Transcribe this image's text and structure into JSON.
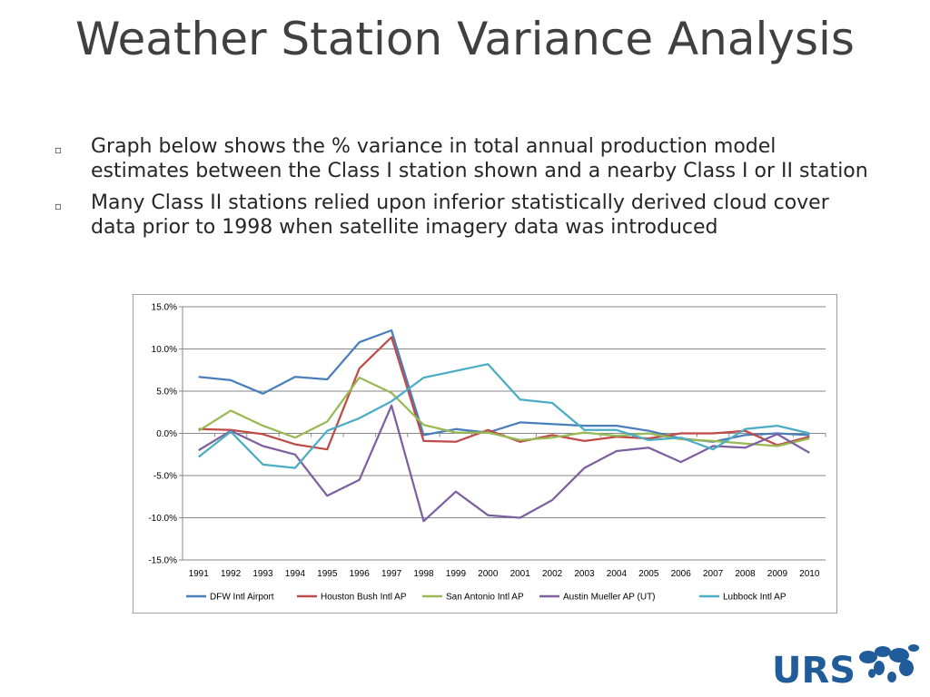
{
  "slide": {
    "title": "Weather Station Variance Analysis",
    "bullets": [
      "Graph below shows the % variance in total annual production model estimates between the Class I station shown and a nearby Class I or II station",
      "Many Class II stations relied upon inferior statistically derived cloud cover data prior to 1998 when satellite imagery data was introduced"
    ],
    "bullet_marker": "▫"
  },
  "logo": {
    "text": "URS",
    "color": "#1f5c99"
  },
  "chart_data": {
    "type": "line",
    "title": "",
    "xlabel": "",
    "ylabel": "",
    "x": [
      "1991",
      "1992",
      "1993",
      "1994",
      "1995",
      "1996",
      "1997",
      "1998",
      "1999",
      "2000",
      "2001",
      "2002",
      "2003",
      "2004",
      "2005",
      "2006",
      "2007",
      "2008",
      "2009",
      "2010"
    ],
    "ylim": [
      -15,
      15
    ],
    "yticks": [
      15,
      10,
      5,
      0,
      -5,
      -10,
      -15
    ],
    "ytick_labels": [
      "15.0%",
      "10.0%",
      "5.0%",
      "0.0%",
      "-5.0%",
      "-10.0%",
      "-15.0%"
    ],
    "grid": true,
    "legend": "bottom",
    "series": [
      {
        "name": "DFW Intl Airport",
        "color": "#4a7ebb",
        "values": [
          6.7,
          6.3,
          4.7,
          6.7,
          6.4,
          10.8,
          12.2,
          -0.2,
          0.5,
          0.1,
          1.3,
          1.1,
          0.9,
          0.9,
          0.3,
          -0.6,
          -1.0,
          -0.2,
          0.0,
          -0.2
        ]
      },
      {
        "name": "Houston Bush Intl AP",
        "color": "#be4b48",
        "values": [
          0.5,
          0.4,
          -0.1,
          -1.3,
          -1.9,
          7.7,
          11.4,
          -0.9,
          -1.0,
          0.4,
          -1.0,
          -0.2,
          -0.9,
          -0.4,
          -0.6,
          0.0,
          0.0,
          0.3,
          -1.4,
          -0.4
        ]
      },
      {
        "name": "San Antonio Intl AP",
        "color": "#98b954",
        "values": [
          0.3,
          2.7,
          0.9,
          -0.5,
          1.4,
          6.6,
          4.8,
          1.0,
          0.1,
          0.1,
          -0.8,
          -0.5,
          0.1,
          -0.3,
          0.0,
          -0.7,
          -0.9,
          -1.2,
          -1.5,
          -0.6
        ]
      },
      {
        "name": "Austin Mueller AP (UT)",
        "color": "#7d60a0",
        "values": [
          -2.0,
          0.3,
          -1.5,
          -2.5,
          -7.4,
          -5.5,
          3.3,
          -10.4,
          -6.9,
          -9.7,
          -10.0,
          -7.9,
          -4.1,
          -2.1,
          -1.7,
          -3.4,
          -1.5,
          -1.7,
          -0.1,
          -2.3
        ]
      },
      {
        "name": "Lubbock Intl AP",
        "color": "#4bacc6",
        "values": [
          -2.8,
          0.2,
          -3.7,
          -4.1,
          0.3,
          1.8,
          3.8,
          6.6,
          7.4,
          8.2,
          4.0,
          3.6,
          0.4,
          0.4,
          -0.8,
          -0.5,
          -1.9,
          0.5,
          0.9,
          0.0
        ]
      }
    ]
  }
}
